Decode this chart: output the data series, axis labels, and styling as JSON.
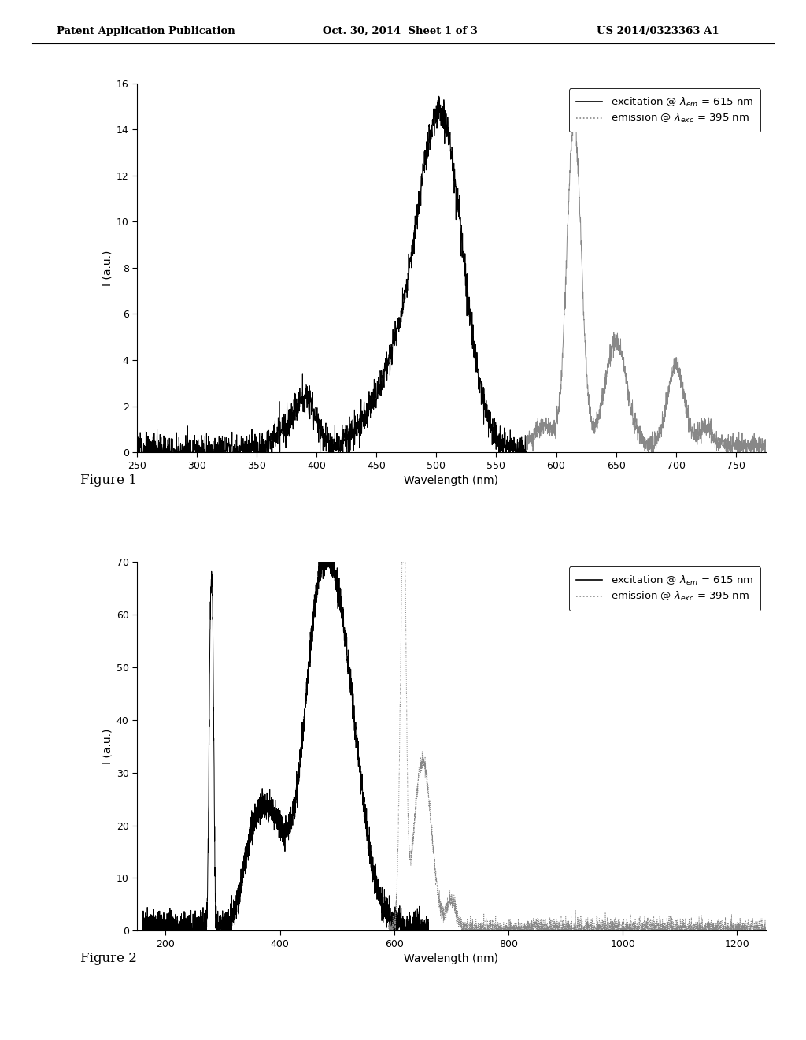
{
  "fig1": {
    "xlabel": "Wavelength (nm)",
    "ylabel": "I (a.u.)",
    "xlim": [
      250,
      775
    ],
    "ylim": [
      0,
      16
    ],
    "yticks": [
      0,
      2,
      4,
      6,
      8,
      10,
      12,
      14,
      16
    ],
    "xticks": [
      250,
      300,
      350,
      400,
      450,
      500,
      550,
      600,
      650,
      700,
      750
    ]
  },
  "fig2": {
    "xlabel": "Wavelength (nm)",
    "ylabel": "I (a.u.)",
    "xlim": [
      150,
      1250
    ],
    "ylim": [
      0,
      70
    ],
    "yticks": [
      0,
      10,
      20,
      30,
      40,
      50,
      60,
      70
    ],
    "xticks": [
      200,
      400,
      600,
      800,
      1000,
      1200
    ]
  },
  "header": {
    "left": "Patent Application Publication",
    "center": "Oct. 30, 2014  Sheet 1 of 3",
    "right": "US 2014/0323363 A1"
  },
  "fig_labels": [
    "Figure 1",
    "Figure 2"
  ],
  "bg_color": "#ffffff",
  "exc1_color": "#000000",
  "em1_color": "#888888",
  "exc2_color": "#000000",
  "em2_color": "#888888",
  "legend_exc1": "excitation @ $\\lambda_{em}$ = 615 nm",
  "legend_em1": "emission @ $\\lambda_{exc}$ = 395 nm",
  "legend_exc2": "excitation @ $\\lambda_{em}$ = 615 nm",
  "legend_em2": "emission @ $\\lambda_{exc}$ = 395 nm"
}
